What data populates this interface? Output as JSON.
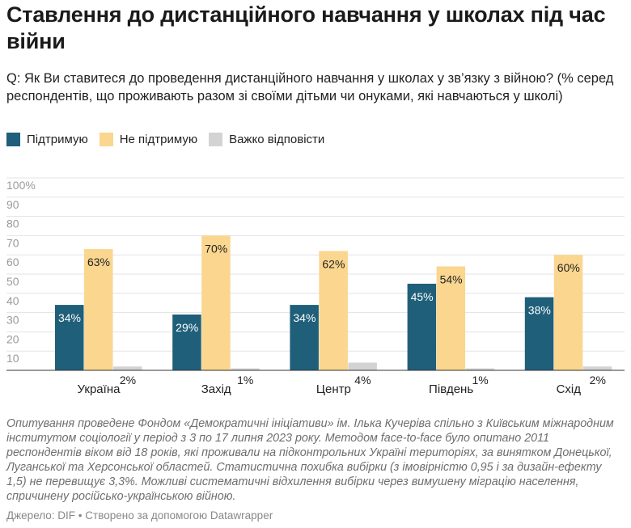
{
  "header": {
    "title": "Ставлення до дистанційного навчання у школах під час війни",
    "question": "Q: Як Ви ставитеся до проведення дистанційного навчання у школах у зв’язку з війною? (% серед респондентів, що проживають разом зі своїми дітьми чи онуками, які навчаються у школі)"
  },
  "legend": [
    {
      "label": "Підтримую",
      "color": "#1f5f7a"
    },
    {
      "label": "Не підтримую",
      "color": "#fad68f"
    },
    {
      "label": "Важко відповісти",
      "color": "#d3d3d3"
    }
  ],
  "chart_data": {
    "type": "bar",
    "categories": [
      "Україна",
      "Захід",
      "Центр",
      "Південь",
      "Схід"
    ],
    "series": [
      {
        "name": "Підтримую",
        "values": [
          34,
          29,
          34,
          45,
          38
        ],
        "color": "#1f5f7a"
      },
      {
        "name": "Не підтримую",
        "values": [
          63,
          70,
          62,
          54,
          60
        ],
        "color": "#fad68f"
      },
      {
        "name": "Важко відповісти",
        "values": [
          2,
          1,
          4,
          1,
          2
        ],
        "color": "#d3d3d3"
      }
    ],
    "ylim": [
      0,
      100
    ],
    "yticks": [
      "",
      "10",
      "20",
      "30",
      "40",
      "50",
      "60",
      "70",
      "80",
      "90",
      "100%"
    ],
    "grid": true,
    "legend_position": "top-left"
  },
  "footer": {
    "notes": "Опитування проведене Фондом «Демократичні ініціативи» ім. Ілька Кучеріва спільно з Київським міжнародним інститутом соціології у період з 3 по 17 липня 2023 року. Методом face-to-face було опитано 2011 респондентів віком від 18 років, які проживали на підконтрольних Україні територіях, за винятком Донецької, Луганської та Херсонської областей. Статистична похибка вибірки (з імовірністю 0,95 і за дизайн-ефекту 1,5) не перевищує 3,3%. Можливі систематичні відхилення вибірки через вимушену міграцію населення, спричинену російсько-українською війною.",
    "source": "Джерело: DIF • Створено за допомогою Datawrapper"
  }
}
